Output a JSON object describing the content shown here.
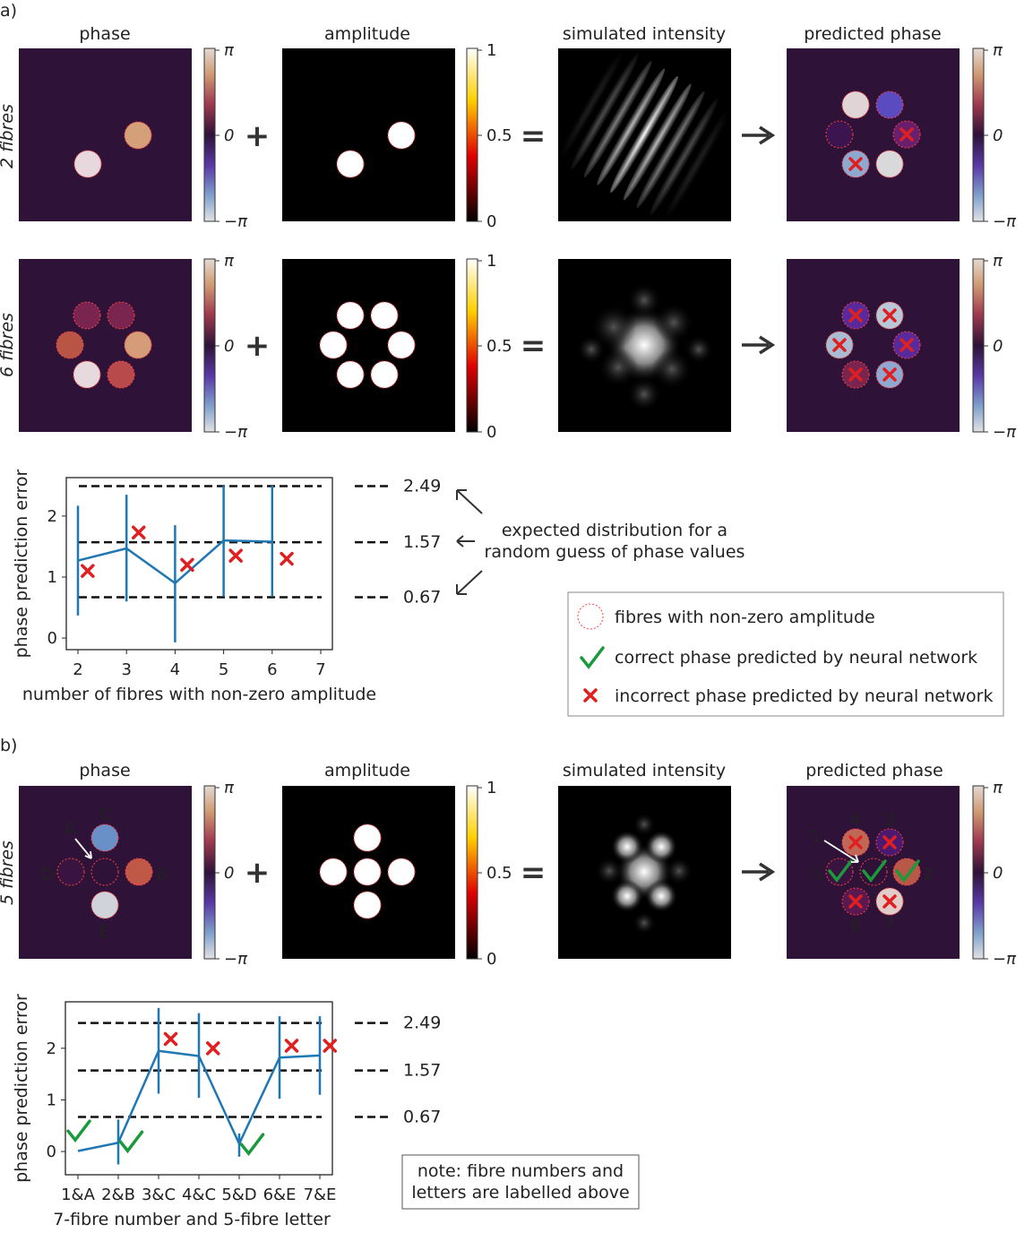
{
  "panel_a": {
    "label": "a)",
    "titles": [
      "phase",
      "amplitude",
      "simulated intensity",
      "predicted phase"
    ],
    "row_labels": [
      "2 fibres",
      "6 fibres"
    ],
    "phase_cbar": [
      "π",
      "0",
      "−π"
    ],
    "amp_cbar": [
      "1",
      "0.5",
      "0"
    ],
    "plus": "+",
    "equals": "=",
    "arrow": "→",
    "annotation": [
      "expected distribution for a",
      "random guess of phase values"
    ],
    "legend": [
      "fibres with non-zero amplitude",
      "correct phase predicted by neural network",
      "incorrect phase predicted by neural network"
    ]
  },
  "panel_b": {
    "label": "b)",
    "titles": [
      "phase",
      "amplitude",
      "simulated intensity",
      "predicted phase"
    ],
    "row_label": "5 fibres",
    "phase_cbar": [
      "π",
      "0",
      "−π"
    ],
    "amp_cbar": [
      "1",
      "0.5",
      "0"
    ],
    "plus": "+",
    "equals": "=",
    "arrow": "→",
    "letters": [
      "A",
      "B",
      "C",
      "D",
      "E"
    ],
    "numbers": [
      "1",
      "2",
      "3",
      "4",
      "5",
      "6",
      "7"
    ],
    "note": [
      "note: fibre numbers and",
      "letters are labelled above"
    ]
  },
  "colors": {
    "line": "#1f77b4",
    "cross": "#e02020",
    "check": "#1a9a3a",
    "phase_bg": "#2e1238"
  },
  "chart_data": [
    {
      "type": "line",
      "title": "",
      "xlabel": "number of fibres with non-zero amplitude",
      "ylabel": "phase prediction error",
      "x": [
        2,
        3,
        4,
        5,
        6
      ],
      "xticks": [
        "2",
        "3",
        "4",
        "5",
        "6",
        "7"
      ],
      "yticks": [
        "0",
        "1",
        "2"
      ],
      "xlim": [
        1.75,
        7.3
      ],
      "ylim": [
        -0.19,
        2.63
      ],
      "series": [
        {
          "name": "mean error",
          "values": [
            1.27,
            1.47,
            0.9,
            1.6,
            1.58
          ],
          "err_low": [
            0.37,
            0.6,
            -0.07,
            0.68,
            0.68
          ],
          "err_high": [
            2.17,
            2.35,
            1.85,
            2.5,
            2.5
          ]
        }
      ],
      "markers": [
        {
          "x": 2.2,
          "y": 1.1,
          "kind": "cross"
        },
        {
          "x": 3.25,
          "y": 1.73,
          "kind": "cross"
        },
        {
          "x": 4.25,
          "y": 1.2,
          "kind": "cross"
        },
        {
          "x": 5.25,
          "y": 1.35,
          "kind": "cross"
        },
        {
          "x": 6.3,
          "y": 1.3,
          "kind": "cross"
        }
      ],
      "reference_lines": [
        {
          "y": 2.49,
          "label": "2.49"
        },
        {
          "y": 1.57,
          "label": "1.57"
        },
        {
          "y": 0.67,
          "label": "0.67"
        }
      ]
    },
    {
      "type": "line",
      "title": "",
      "xlabel": "7-fibre number and 5-fibre letter",
      "ylabel": "phase prediction error",
      "categories": [
        "1&A",
        "2&B",
        "3&C",
        "4&C",
        "5&D",
        "6&E",
        "7&E"
      ],
      "yticks": [
        "0",
        "1",
        "2"
      ],
      "ylim": [
        -0.45,
        2.9
      ],
      "series": [
        {
          "name": "mean error",
          "values": [
            0.01,
            0.17,
            1.95,
            1.85,
            0.15,
            1.82,
            1.86
          ],
          "err_low": [
            null,
            -0.25,
            1.12,
            1.04,
            -0.1,
            1.02,
            1.1
          ],
          "err_high": [
            null,
            0.62,
            2.78,
            2.68,
            0.35,
            2.62,
            2.62
          ]
        }
      ],
      "markers": [
        {
          "x": 0,
          "y": 0.38,
          "kind": "check"
        },
        {
          "x": 1.3,
          "y": 0.17,
          "kind": "check"
        },
        {
          "x": 2.3,
          "y": 2.18,
          "kind": "cross"
        },
        {
          "x": 3.35,
          "y": 2.0,
          "kind": "cross"
        },
        {
          "x": 4.3,
          "y": 0.12,
          "kind": "check"
        },
        {
          "x": 5.3,
          "y": 2.05,
          "kind": "cross"
        },
        {
          "x": 6.25,
          "y": 2.05,
          "kind": "cross"
        }
      ],
      "reference_lines": [
        {
          "y": 2.49,
          "label": "2.49"
        },
        {
          "y": 1.57,
          "label": "1.57"
        },
        {
          "y": 0.67,
          "label": "0.67"
        }
      ]
    }
  ]
}
